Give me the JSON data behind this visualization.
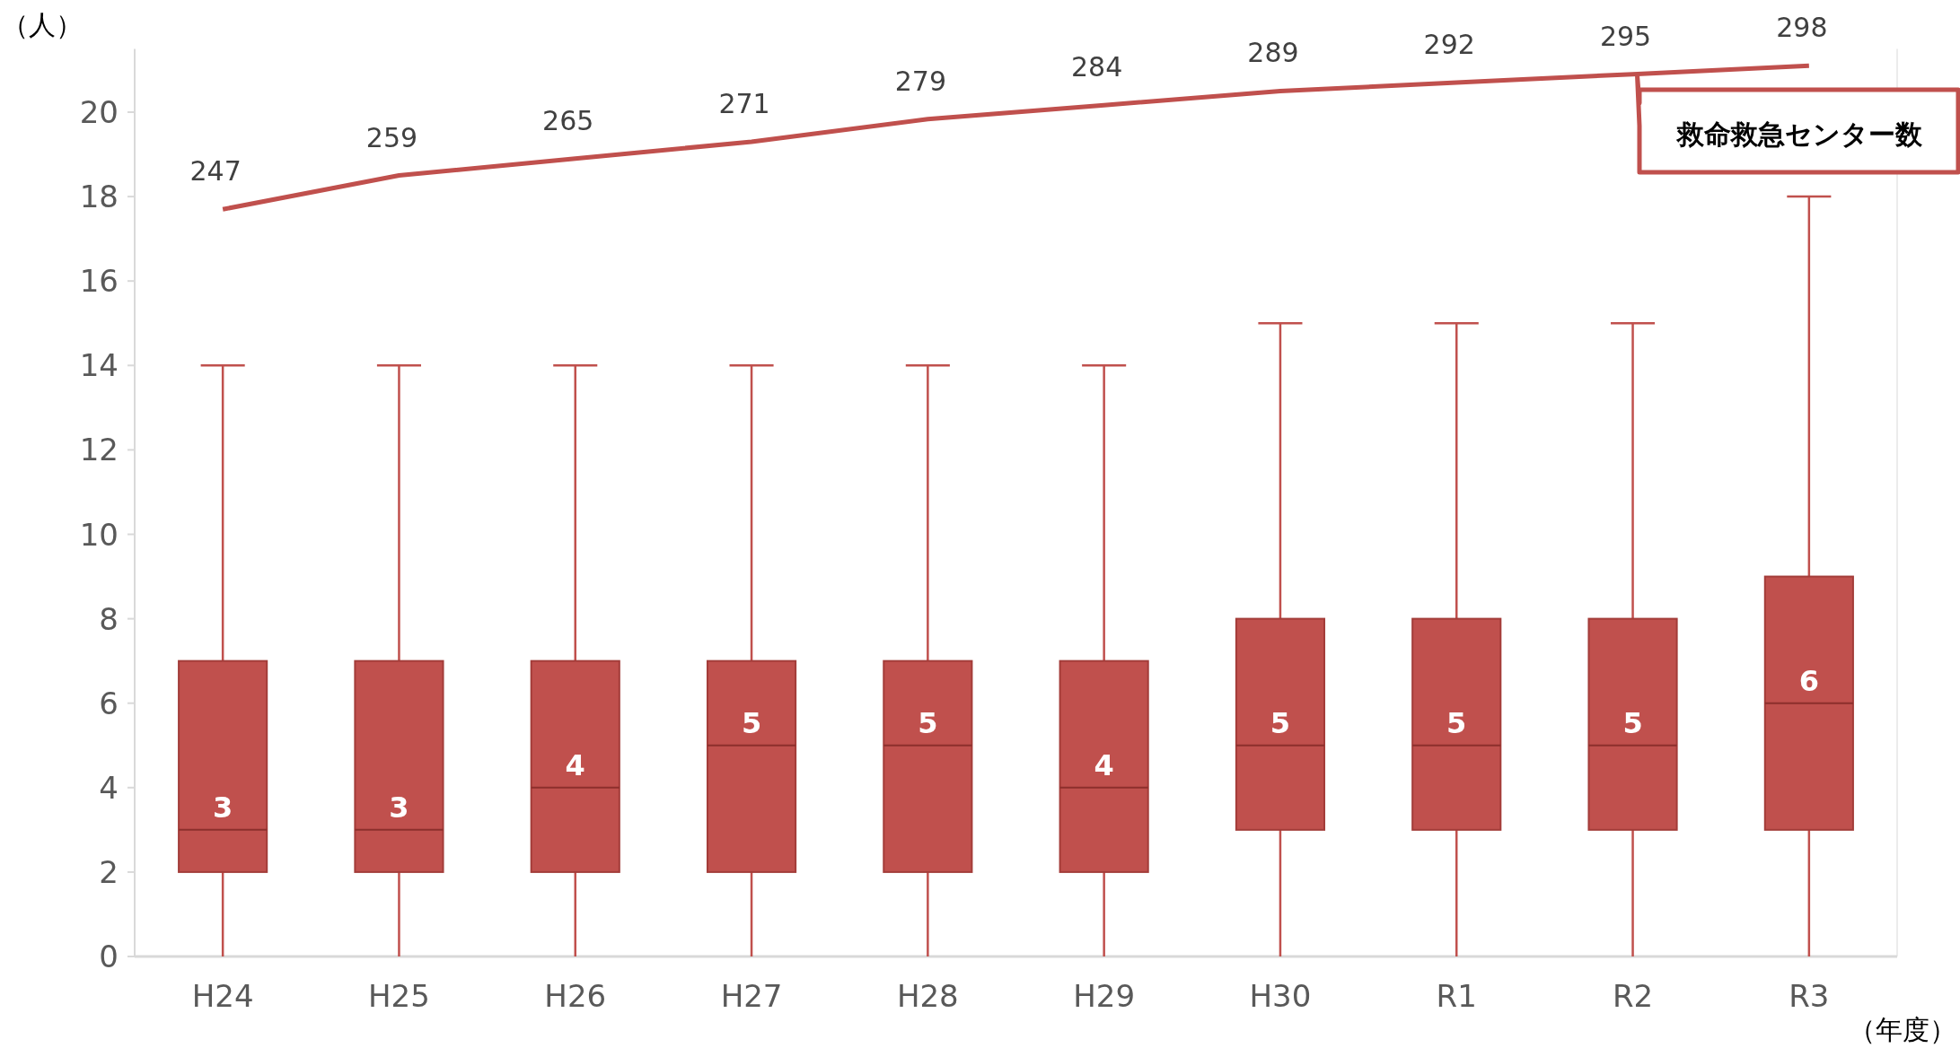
{
  "chart_data": {
    "type": "box",
    "ylabel": "（人）",
    "xlabel": "（年度）",
    "categories": [
      "H24",
      "H25",
      "H26",
      "H27",
      "H28",
      "H29",
      "H30",
      "R1",
      "R2",
      "R3"
    ],
    "ylim": [
      0,
      21.5
    ],
    "yticks": [
      0,
      2,
      4,
      6,
      8,
      10,
      12,
      14,
      16,
      18,
      20
    ],
    "y2lim": [
      -18.5,
      304
    ],
    "data_labels": true,
    "grid": false,
    "series": [
      {
        "color": "#c0504d",
        "value_labels": [
          "3",
          "3",
          "4",
          "5",
          "5",
          "4",
          "5",
          "5",
          "5",
          "6"
        ],
        "boxes": [
          {
            "low": 0,
            "q1": 2,
            "median": 3,
            "q3": 7,
            "high": 14
          },
          {
            "low": 0,
            "q1": 2,
            "median": 3,
            "q3": 7,
            "high": 14
          },
          {
            "low": 0,
            "q1": 2,
            "median": 4,
            "q3": 7,
            "high": 14
          },
          {
            "low": 0,
            "q1": 2,
            "median": 5,
            "q3": 7,
            "high": 14
          },
          {
            "low": 0,
            "q1": 2,
            "median": 5,
            "q3": 7,
            "high": 14
          },
          {
            "low": 0,
            "q1": 2,
            "median": 4,
            "q3": 7,
            "high": 14
          },
          {
            "low": 0,
            "q1": 3,
            "median": 5,
            "q3": 8,
            "high": 15
          },
          {
            "low": 0,
            "q1": 3,
            "median": 5,
            "q3": 8,
            "high": 15
          },
          {
            "low": 0,
            "q1": 3,
            "median": 5,
            "q3": 8,
            "high": 15
          },
          {
            "low": 0,
            "q1": 3,
            "median": 6,
            "q3": 9,
            "high": 18
          }
        ]
      },
      {
        "type": "line",
        "name": "救命救急センター数",
        "axis": "y2",
        "color": "#c0504d",
        "values": [
          247,
          259,
          265,
          271,
          279,
          284,
          289,
          292,
          295,
          298
        ]
      }
    ]
  }
}
